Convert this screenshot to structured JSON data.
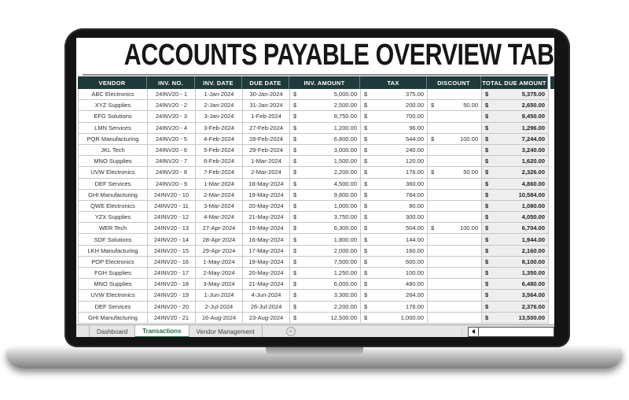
{
  "title": "ACCOUNTS PAYABLE OVERVIEW TAB",
  "colors": {
    "header_bg": "#203a3c",
    "active_tab_green": "#1e7245",
    "total_col_bg": "#eeeeee"
  },
  "table": {
    "currency": "$",
    "columns": [
      "VENDOR",
      "INV. NO.",
      "INV. DATE",
      "DUE DATE",
      "INV. AMOUNT",
      "TAX",
      "DISCOUNT",
      "TOTAL DUE AMOUNT"
    ],
    "rows": [
      {
        "vendor": "ABC Electronics",
        "inv_no": "24INV20 - 1",
        "inv_date": "1-Jan-2024",
        "due_date": "30-Jan-2024",
        "inv_amount": "5,000.00",
        "tax": "375.00",
        "discount": "",
        "total": "5,375.00"
      },
      {
        "vendor": "XYZ Supplies",
        "inv_no": "24INV20 - 2",
        "inv_date": "2-Jan-2024",
        "due_date": "31-Jan-2024",
        "inv_amount": "2,500.00",
        "tax": "200.00",
        "discount": "50.00",
        "total": "2,650.00"
      },
      {
        "vendor": "EFG Solutions",
        "inv_no": "24INV20 - 3",
        "inv_date": "3-Jan-2024",
        "due_date": "1-Feb-2024",
        "inv_amount": "8,750.00",
        "tax": "700.00",
        "discount": "",
        "total": "9,450.00"
      },
      {
        "vendor": "LMN Services",
        "inv_no": "24INV20 - 4",
        "inv_date": "3-Feb-2024",
        "due_date": "27-Feb-2024",
        "inv_amount": "1,200.00",
        "tax": "96.00",
        "discount": "",
        "total": "1,296.00"
      },
      {
        "vendor": "PQR Manufacturing",
        "inv_no": "24INV20 - 5",
        "inv_date": "4-Feb-2024",
        "due_date": "28-Feb-2024",
        "inv_amount": "6,800.00",
        "tax": "544.00",
        "discount": "100.00",
        "total": "7,244.00"
      },
      {
        "vendor": "JKL Tech",
        "inv_no": "24INV20 - 6",
        "inv_date": "5-Feb-2024",
        "due_date": "29-Feb-2024",
        "inv_amount": "3,000.00",
        "tax": "240.00",
        "discount": "",
        "total": "3,240.00"
      },
      {
        "vendor": "MNO Supplies",
        "inv_no": "24INV20 - 7",
        "inv_date": "6-Feb-2024",
        "due_date": "1-Mar-2024",
        "inv_amount": "1,500.00",
        "tax": "120.00",
        "discount": "",
        "total": "1,620.00"
      },
      {
        "vendor": "UVW Electronics",
        "inv_no": "24INV20 - 8",
        "inv_date": "7-Feb-2024",
        "due_date": "2-Mar-2024",
        "inv_amount": "2,200.00",
        "tax": "176.00",
        "discount": "50.00",
        "total": "2,326.00"
      },
      {
        "vendor": "DEF Services",
        "inv_no": "24INV20 - 9",
        "inv_date": "1-Mar-2024",
        "due_date": "18-May-2024",
        "inv_amount": "4,500.00",
        "tax": "360.00",
        "discount": "",
        "total": "4,860.00"
      },
      {
        "vendor": "GHI Manufacturing",
        "inv_no": "24INV20 - 10",
        "inv_date": "2-Mar-2024",
        "due_date": "19-May-2024",
        "inv_amount": "9,800.00",
        "tax": "784.00",
        "discount": "",
        "total": "10,584.00"
      },
      {
        "vendor": "QWE Electronics",
        "inv_no": "24INV20 - 11",
        "inv_date": "3-Mar-2024",
        "due_date": "20-May-2024",
        "inv_amount": "1,000.00",
        "tax": "80.00",
        "discount": "",
        "total": "1,080.00"
      },
      {
        "vendor": "YZX Supplies",
        "inv_no": "24INV20 - 12",
        "inv_date": "4-Mar-2024",
        "due_date": "21-May-2024",
        "inv_amount": "3,750.00",
        "tax": "300.00",
        "discount": "",
        "total": "4,050.00"
      },
      {
        "vendor": "WER Tech",
        "inv_no": "24INV20 - 13",
        "inv_date": "27-Apr-2024",
        "due_date": "15-May-2024",
        "inv_amount": "6,300.00",
        "tax": "504.00",
        "discount": "100.00",
        "total": "6,704.00"
      },
      {
        "vendor": "SDF Solutions",
        "inv_no": "24INV20 - 14",
        "inv_date": "28-Apr-2024",
        "due_date": "16-May-2024",
        "inv_amount": "1,800.00",
        "tax": "144.00",
        "discount": "",
        "total": "1,944.00"
      },
      {
        "vendor": "LKH Manufacturing",
        "inv_no": "24INV20 - 15",
        "inv_date": "29-Apr-2024",
        "due_date": "17-May-2024",
        "inv_amount": "2,000.00",
        "tax": "160.00",
        "discount": "",
        "total": "2,160.00"
      },
      {
        "vendor": "POP Electronics",
        "inv_no": "24INV20 - 16",
        "inv_date": "1-May-2024",
        "due_date": "19-May-2024",
        "inv_amount": "7,500.00",
        "tax": "600.00",
        "discount": "",
        "total": "8,100.00"
      },
      {
        "vendor": "FGH Supplies",
        "inv_no": "24INV20 - 17",
        "inv_date": "2-May-2024",
        "due_date": "20-May-2024",
        "inv_amount": "1,250.00",
        "tax": "100.00",
        "discount": "",
        "total": "1,350.00"
      },
      {
        "vendor": "MNO Supplies",
        "inv_no": "24INV20 - 18",
        "inv_date": "3-May-2024",
        "due_date": "21-May-2024",
        "inv_amount": "6,000.00",
        "tax": "480.00",
        "discount": "",
        "total": "6,480.00"
      },
      {
        "vendor": "UVW Electronics",
        "inv_no": "24INV20 - 19",
        "inv_date": "1-Jun-2024",
        "due_date": "4-Jun-2024",
        "inv_amount": "3,300.00",
        "tax": "264.00",
        "discount": "",
        "total": "3,564.00"
      },
      {
        "vendor": "DEF Services",
        "inv_no": "24INV20 - 20",
        "inv_date": "2-Jul-2024",
        "due_date": "26-Jul-2024",
        "inv_amount": "2,200.00",
        "tax": "176.00",
        "discount": "",
        "total": "2,376.00"
      },
      {
        "vendor": "GHI Manufacturing",
        "inv_no": "24INV20 - 21",
        "inv_date": "16-Aug-2024",
        "due_date": "23-Aug-2024",
        "inv_amount": "12,500.00",
        "tax": "1,000.00",
        "discount": "",
        "total": "13,500.00"
      }
    ]
  },
  "sheet_bar": {
    "tabs": [
      {
        "label": "Dashboard",
        "active": false
      },
      {
        "label": "Transactions",
        "active": true
      },
      {
        "label": "Vendor Management",
        "active": false
      }
    ],
    "add_sheet_label": "+"
  }
}
